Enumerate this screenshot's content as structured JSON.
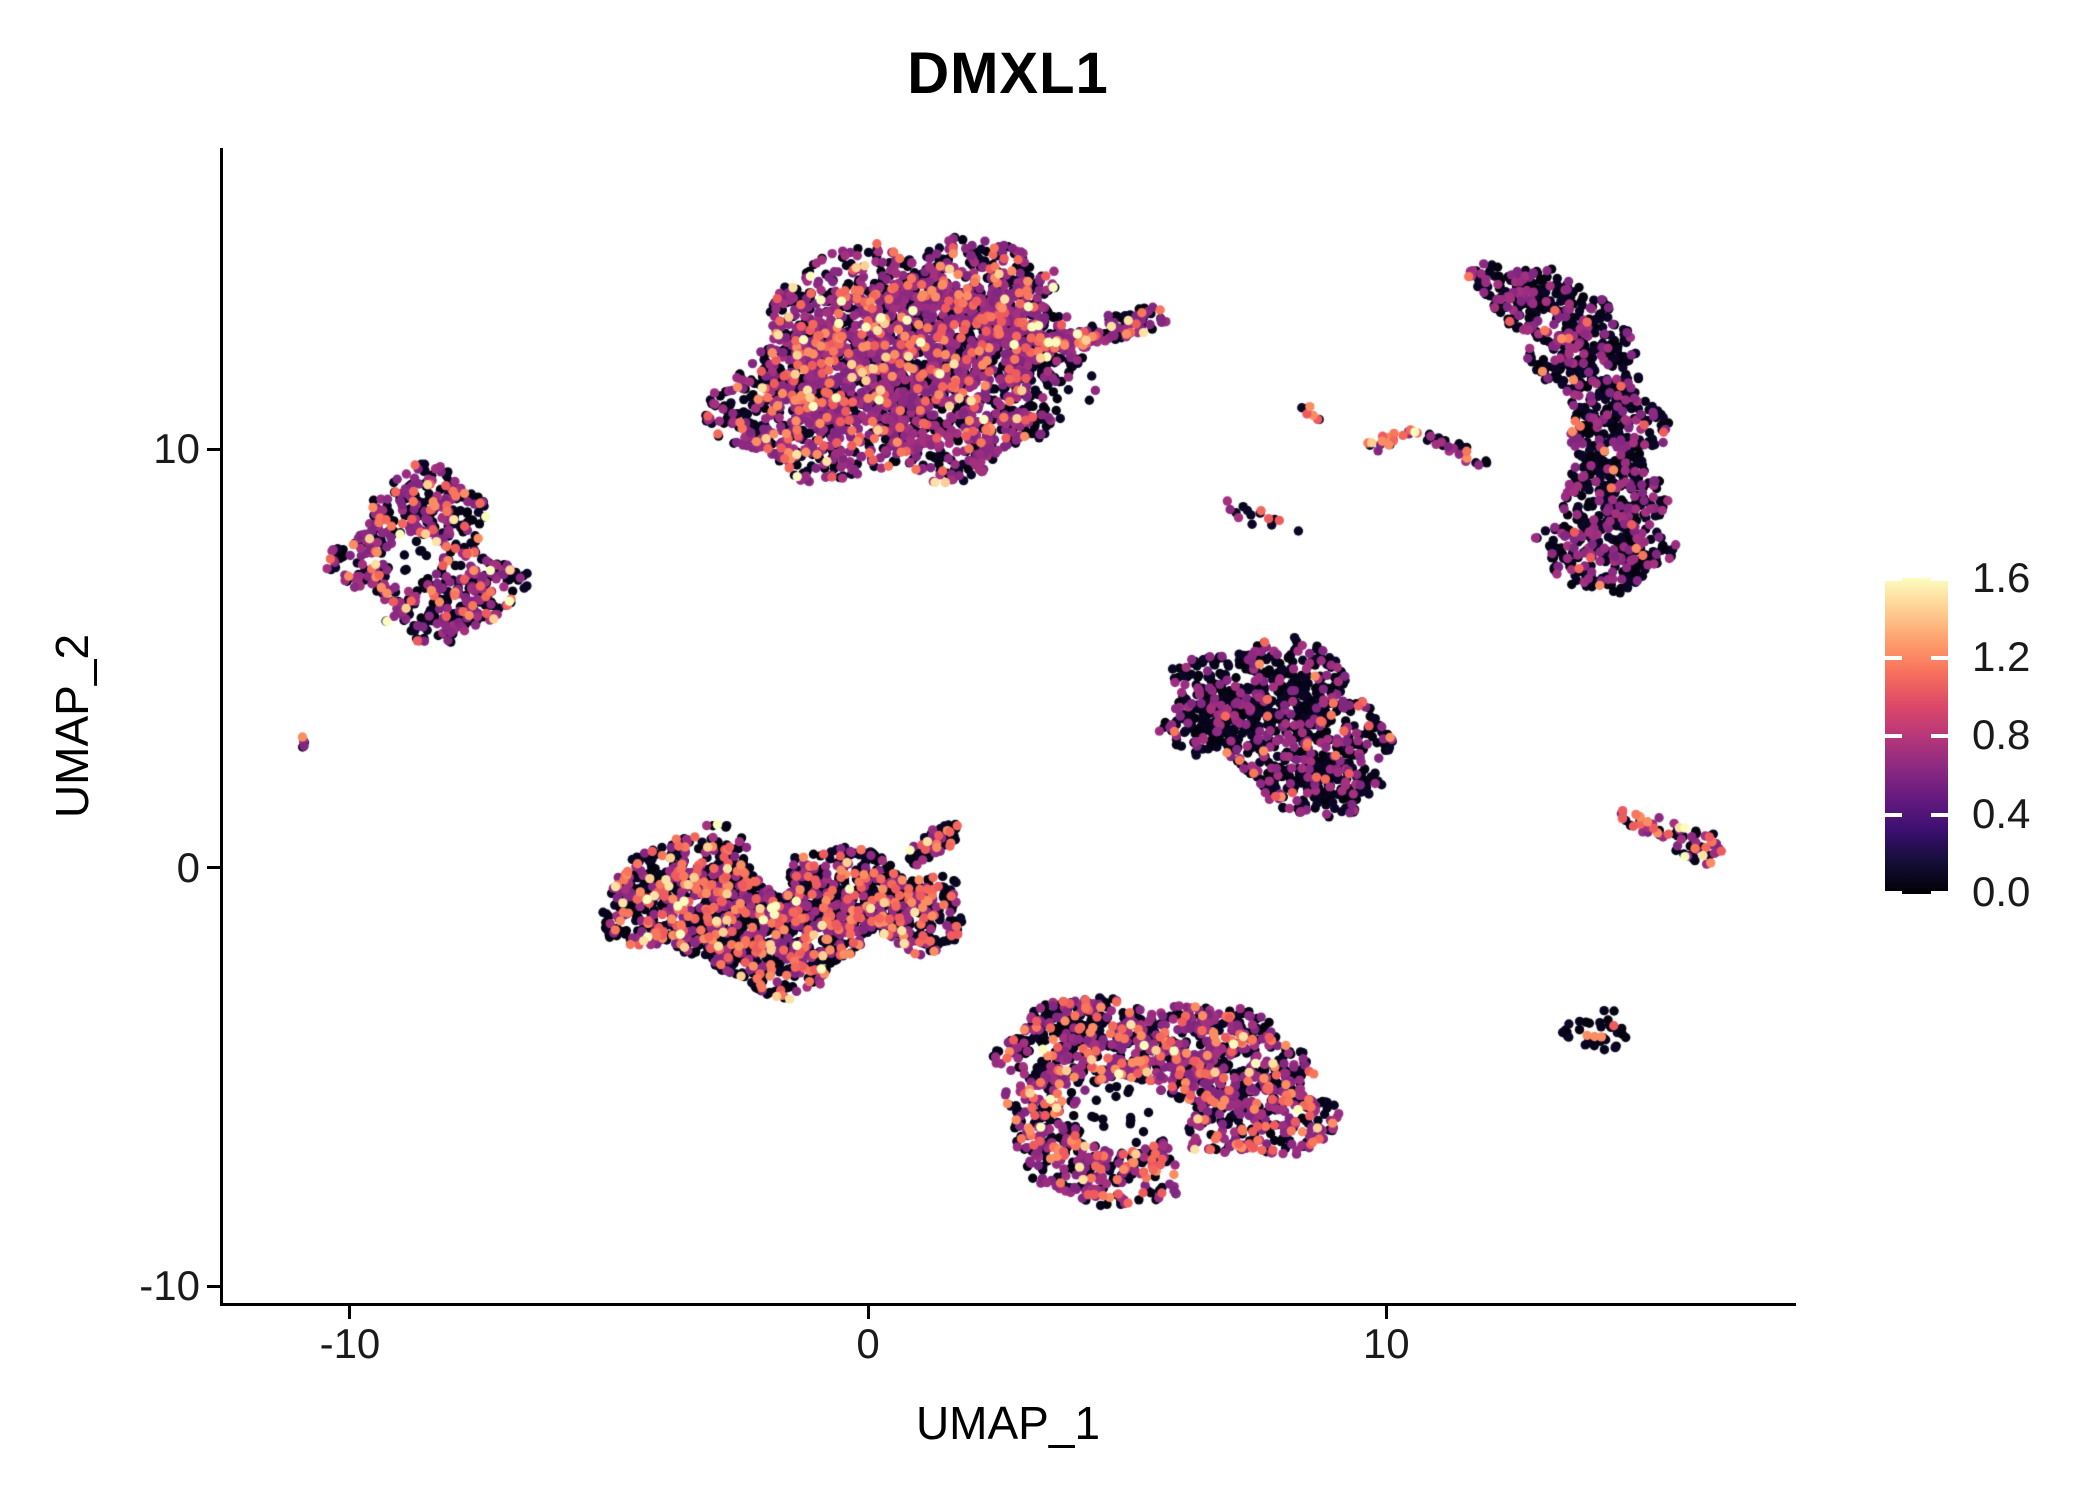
{
  "page": {
    "title": "DMXL1"
  },
  "chart_data": {
    "type": "scatter",
    "title": "DMXL1",
    "xlabel": "UMAP_1",
    "ylabel": "UMAP_2",
    "x_ticks": [
      -10,
      0,
      10
    ],
    "y_ticks": [
      -10,
      0,
      10
    ],
    "x_range": [
      -12.45,
      17.85
    ],
    "y_range": [
      -10.4,
      17.2
    ],
    "grid": false,
    "legend_position": "right",
    "point_radius_px": 4.7,
    "background": "#ffffff",
    "axis_color": "#000000",
    "text_color": "#1a1a1a",
    "point_classes": {
      "black": [
        "#07051c",
        "#0b0626",
        "#04030f"
      ],
      "purple": [
        "#8c2981",
        "#9a2d80",
        "#a3317e",
        "#812780"
      ],
      "orange": [
        "#f8765c",
        "#f4685c",
        "#fb8d62",
        "#ee5b5e"
      ],
      "yellow": [
        "#fecf92",
        "#fde2a3",
        "#fbfdbf"
      ]
    },
    "colorbar": {
      "min": 0.0,
      "max": 1.6,
      "tick_values": [
        0.0,
        0.4,
        0.8,
        1.2,
        1.6
      ],
      "tick_labels": [
        "0.0",
        "0.4",
        "0.8",
        "1.2",
        "1.6"
      ],
      "gradient_bottom_to_top": [
        "#000004",
        "#140e36",
        "#3b0f70",
        "#641a80",
        "#8c2981",
        "#b73779",
        "#de4968",
        "#f7705c",
        "#fe9f6d",
        "#fecf92",
        "#fcfdbf"
      ]
    },
    "clusters": [
      {
        "name": "top-center-large",
        "weights": {
          "black": 0.45,
          "purple": 0.43,
          "orange": 0.1,
          "yellow": 0.02
        },
        "components": [
          {
            "cx": 0.3,
            "cy": 12.7,
            "rx": 2.3,
            "ry": 2.0,
            "n": 1000
          },
          {
            "cx": -1.0,
            "cy": 11.1,
            "rx": 1.8,
            "ry": 1.9,
            "n": 700
          },
          {
            "cx": 2.0,
            "cy": 13.4,
            "rx": 1.9,
            "ry": 1.5,
            "n": 600
          },
          {
            "cx": 1.7,
            "cy": 10.8,
            "rx": 1.7,
            "ry": 1.4,
            "n": 500
          },
          {
            "cx": 3.1,
            "cy": 12.4,
            "rx": 1.0,
            "ry": 1.0,
            "n": 180
          },
          {
            "cx": 4.6,
            "cy": 12.85,
            "rx": 1.3,
            "ry": 0.3,
            "rot": 20,
            "n": 140
          },
          {
            "cx": 3.4,
            "cy": 11.4,
            "rx": 1.0,
            "ry": 0.85,
            "n": 40,
            "weights": {
              "black": 0.85,
              "purple": 0.15
            }
          },
          {
            "cx": 3.4,
            "cy": 12.9,
            "rx": 0.55,
            "ry": 0.5,
            "n": 14,
            "weights": {
              "black": 0.9,
              "purple": 0.1
            }
          }
        ],
        "holes": []
      },
      {
        "name": "upper-left",
        "weights": {
          "black": 0.5,
          "purple": 0.38,
          "orange": 0.1,
          "yellow": 0.02
        },
        "components": [
          {
            "cx": -8.5,
            "cy": 8.5,
            "rx": 1.15,
            "ry": 1.0,
            "n": 230
          },
          {
            "cx": -9.35,
            "cy": 7.3,
            "rx": 0.95,
            "ry": 1.05,
            "n": 170
          },
          {
            "cx": -7.7,
            "cy": 6.7,
            "rx": 1.05,
            "ry": 0.9,
            "n": 190
          },
          {
            "cx": -8.4,
            "cy": 5.9,
            "rx": 0.9,
            "ry": 0.55,
            "n": 80
          }
        ],
        "holes": [
          {
            "cx": -8.75,
            "cy": 7.4,
            "r": 0.55,
            "sparse": 7
          }
        ]
      },
      {
        "name": "tiny-left-pair",
        "weights": {
          "black": 0.4,
          "purple": 0.2,
          "orange": 0.4
        },
        "components": [
          {
            "cx": -10.9,
            "cy": 3.0,
            "rx": 0.18,
            "ry": 0.14,
            "n": 5
          }
        ],
        "holes": []
      },
      {
        "name": "center-left",
        "weights": {
          "black": 0.6,
          "purple": 0.21,
          "orange": 0.17,
          "yellow": 0.02
        },
        "components": [
          {
            "cx": -3.4,
            "cy": -0.7,
            "rx": 1.6,
            "ry": 1.55,
            "n": 700
          },
          {
            "cx": -1.7,
            "cy": -1.7,
            "rx": 1.55,
            "ry": 1.25,
            "n": 550
          },
          {
            "cx": -0.4,
            "cy": -0.6,
            "rx": 1.4,
            "ry": 1.05,
            "n": 400
          },
          {
            "cx": 0.9,
            "cy": -1.1,
            "rx": 1.0,
            "ry": 0.9,
            "n": 220
          },
          {
            "cx": 1.3,
            "cy": 0.6,
            "rx": 0.8,
            "ry": 0.28,
            "rot": 40,
            "n": 70
          }
        ],
        "holes": []
      },
      {
        "name": "middle-right-triangle",
        "weights": {
          "black": 0.72,
          "purple": 0.24,
          "orange": 0.04
        },
        "components": [
          {
            "cx": 7.7,
            "cy": 4.4,
            "rx": 1.7,
            "ry": 1.0,
            "n": 350
          },
          {
            "cx": 8.3,
            "cy": 3.1,
            "rx": 1.8,
            "ry": 1.05,
            "n": 350
          },
          {
            "cx": 8.7,
            "cy": 1.9,
            "rx": 1.2,
            "ry": 0.65,
            "n": 170
          },
          {
            "cx": 6.4,
            "cy": 3.4,
            "rx": 0.7,
            "ry": 0.75,
            "n": 90
          }
        ],
        "holes": []
      },
      {
        "name": "bottom-center",
        "weights": {
          "black": 0.46,
          "purple": 0.38,
          "orange": 0.14,
          "yellow": 0.02
        },
        "components": [
          {
            "cx": 4.2,
            "cy": -4.2,
            "rx": 1.6,
            "ry": 1.05,
            "n": 380
          },
          {
            "cx": 6.6,
            "cy": -4.5,
            "rx": 1.8,
            "ry": 1.15,
            "n": 480
          },
          {
            "cx": 7.6,
            "cy": -5.9,
            "rx": 1.45,
            "ry": 1.05,
            "n": 320
          },
          {
            "cx": 4.7,
            "cy": -7.0,
            "rx": 1.4,
            "ry": 1.15,
            "n": 320
          },
          {
            "cx": 3.5,
            "cy": -5.9,
            "rx": 0.85,
            "ry": 1.05,
            "n": 160
          }
        ],
        "holes": [
          {
            "cx": 4.9,
            "cy": -5.9,
            "r": 0.9,
            "sparse": 16
          }
        ]
      },
      {
        "name": "right-banana",
        "weights": {
          "black": 0.7,
          "purple": 0.28,
          "orange": 0.02
        },
        "components": [
          {
            "cx": 13.0,
            "cy": 13.5,
            "rx": 1.35,
            "ry": 0.8,
            "rot": -30,
            "n": 240
          },
          {
            "cx": 13.9,
            "cy": 12.2,
            "rx": 1.05,
            "ry": 0.95,
            "n": 210
          },
          {
            "cx": 14.4,
            "cy": 10.6,
            "rx": 0.95,
            "ry": 1.05,
            "n": 210
          },
          {
            "cx": 14.4,
            "cy": 9.0,
            "rx": 1.0,
            "ry": 1.05,
            "n": 210
          },
          {
            "cx": 14.2,
            "cy": 7.5,
            "rx": 1.25,
            "ry": 0.85,
            "n": 240
          }
        ],
        "holes": []
      },
      {
        "name": "small-chevron-bright-arm",
        "weights": {
          "yellow": 0.18,
          "orange": 0.42,
          "purple": 0.2,
          "black": 0.2
        },
        "components": [
          {
            "cx": 10.1,
            "cy": 10.25,
            "rx": 0.65,
            "ry": 0.16,
            "rot": 25,
            "n": 22
          }
        ],
        "holes": []
      },
      {
        "name": "small-chevron-dark-arm",
        "weights": {
          "purple": 0.4,
          "black": 0.5,
          "orange": 0.1
        },
        "components": [
          {
            "cx": 11.35,
            "cy": 10.0,
            "rx": 0.8,
            "ry": 0.16,
            "rot": -28,
            "n": 26
          }
        ],
        "holes": []
      },
      {
        "name": "small-orange-blob",
        "weights": {
          "orange": 0.45,
          "purple": 0.15,
          "black": 0.4
        },
        "components": [
          {
            "cx": 8.6,
            "cy": 10.9,
            "rx": 0.24,
            "ry": 0.2,
            "n": 7
          }
        ],
        "holes": []
      },
      {
        "name": "small-bead-streak",
        "weights": {
          "black": 0.65,
          "orange": 0.2,
          "purple": 0.15
        },
        "components": [
          {
            "cx": 7.55,
            "cy": 8.35,
            "rx": 0.8,
            "ry": 0.22,
            "rot": -26,
            "n": 15
          }
        ],
        "holes": []
      },
      {
        "name": "right-arrow",
        "weights": {
          "black": 0.5,
          "purple": 0.23,
          "orange": 0.22,
          "yellow": 0.05
        },
        "components": [
          {
            "cx": 15.1,
            "cy": 1.0,
            "rx": 0.85,
            "ry": 0.25,
            "rot": -20,
            "n": 30,
            "weights": {
              "black": 0.55,
              "purple": 0.25,
              "orange": 0.2
            }
          },
          {
            "cx": 16.0,
            "cy": 0.55,
            "rx": 0.55,
            "ry": 0.5,
            "n": 45
          }
        ],
        "holes": []
      },
      {
        "name": "bottom-right-dot",
        "weights": {
          "black": 0.9,
          "orange": 0.1
        },
        "components": [
          {
            "cx": 14.1,
            "cy": -3.85,
            "rx": 0.6,
            "ry": 0.52,
            "n": 36
          }
        ],
        "holes": []
      }
    ]
  }
}
